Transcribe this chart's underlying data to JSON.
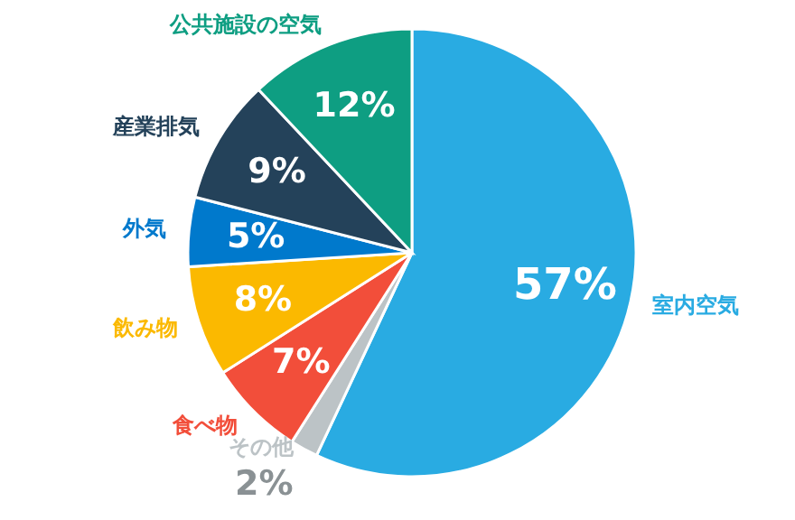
{
  "chart_data": {
    "type": "pie",
    "categories": [
      "室内空気",
      "その他",
      "食べ物",
      "飲み物",
      "外気",
      "産業排気",
      "公共施設の空気"
    ],
    "values": [
      57,
      2,
      7,
      8,
      5,
      9,
      12
    ],
    "colors": [
      "#29abe2",
      "#bcc3c6",
      "#f24e3a",
      "#fbb900",
      "#0079cc",
      "#24425a",
      "#0e9e82"
    ],
    "value_labels": [
      "57%",
      "2%",
      "7%",
      "8%",
      "5%",
      "9%",
      "12%"
    ]
  }
}
